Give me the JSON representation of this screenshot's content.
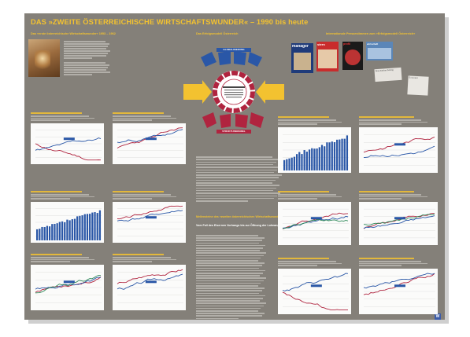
{
  "poster": {
    "title": "DAS »ZWEITE ÖSTERREICHISCHE WIRTSCHAFTSWUNDER« – 1990 bis heute",
    "section_left": "Das »erste österreichische Wirtschaftswunder« 1953 – 1962",
    "section_center": "Das Erfolgsmodell Österreich",
    "section_right": "Internationale Pressestimmen zum »Erfolgsmodell Österreich«",
    "center_heading": "Meilensteine des »zweiten österreichischen Wirtschaftswunders«",
    "center_subheading": "Vom Fall des Eisernen Vorhangs bis zur Öffnung der Lohnangelpreise",
    "diagram_top_label": "GLOBALISIERUNG",
    "diagram_bottom_label": "STRUKTURWANDEL",
    "magazines": [
      "manager",
      "stern",
      "profil",
      "wirtschaft",
      "Neue Zürcher Zeitung",
      "Economist"
    ],
    "logo": "W"
  },
  "colors": {
    "background": "#848079",
    "accent": "#f3c230",
    "red": "#b0243f",
    "blue": "#2a57a7"
  }
}
